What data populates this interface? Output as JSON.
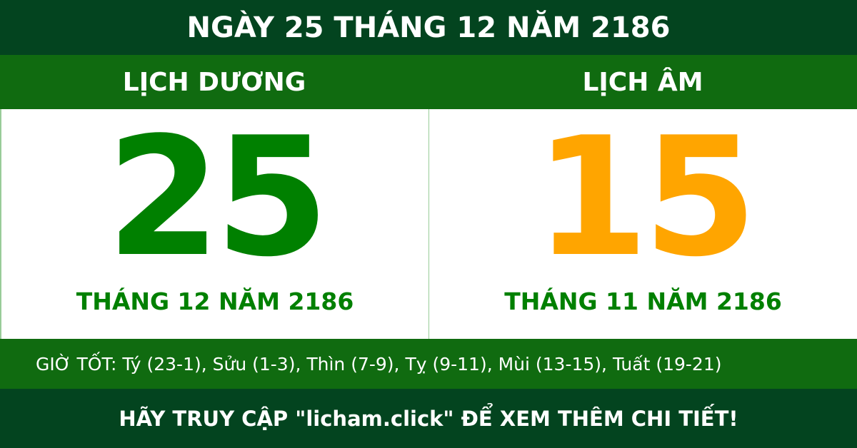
{
  "title": "NGÀY 25 THÁNG 12 NĂM 2186",
  "solar": {
    "heading": "LỊCH DƯƠNG",
    "day": "25",
    "month_year": "THÁNG 12 NĂM 2186"
  },
  "lunar": {
    "heading": "LỊCH ÂM",
    "day": "15",
    "month_year": "THÁNG 11 NĂM 2186"
  },
  "good_hours": "GIỜ TỐT: Tý (23-1), Sửu (1-3), Thìn (7-9), Tỵ (9-11), Mùi (13-15), Tuất (19-21)",
  "footer": "HÃY TRUY CẬP \"licham.click\" ĐỂ XEM THÊM CHI TIẾT!",
  "colors": {
    "dark": "#03441f",
    "band": "#106b10",
    "solar": "#008000",
    "lunar": "#ffa500"
  }
}
